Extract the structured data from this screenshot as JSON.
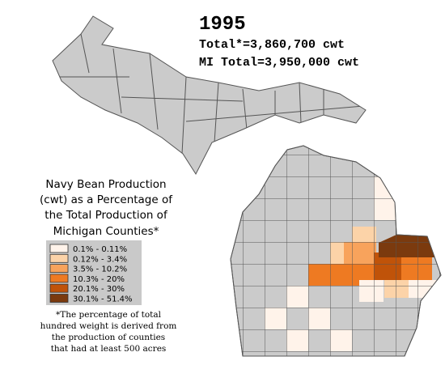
{
  "year": "1995",
  "totals": [
    "Total*=3,860,700 cwt",
    "MI Total=3,950,000 cwt"
  ],
  "legend": {
    "title": [
      "Navy Bean Production",
      "(cwt) as a Percentage of",
      "the Total Production of",
      "Michigan Counties*"
    ],
    "items": [
      {
        "label": "0.1% - 0.11%",
        "color": "#fff3ea"
      },
      {
        "label": "0.12% - 3.4%",
        "color": "#fcd3a8"
      },
      {
        "label": "3.5% - 10.2%",
        "color": "#f8a35c"
      },
      {
        "label": "10.3% - 20%",
        "color": "#ee7a22"
      },
      {
        "label": "20.1% - 30%",
        "color": "#c05309"
      },
      {
        "label": "30.1% - 51.4%",
        "color": "#7b3a0e"
      }
    ]
  },
  "footnote": [
    "*The percentage of total",
    "hundred weight is derived from",
    "the production of counties",
    "that had at least 500 acres"
  ]
}
